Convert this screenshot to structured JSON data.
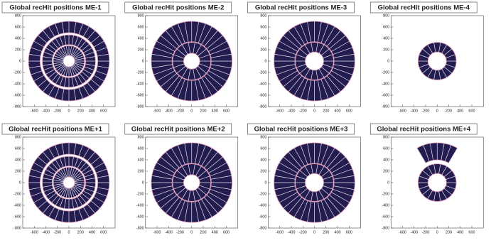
{
  "chart_data": [
    {
      "type": "rings",
      "title": "Global recHit positions ME-1",
      "xlim": [
        -800,
        800
      ],
      "ylim": [
        -800,
        800
      ],
      "xticks": [
        -600,
        -400,
        -200,
        0,
        200,
        400,
        600
      ],
      "yticks": [
        -800,
        -600,
        -400,
        -200,
        0,
        200,
        400,
        600,
        800
      ],
      "color": "#231d4f",
      "rings": [
        {
          "inner": 100,
          "outer": 270,
          "chambers": 36
        },
        {
          "inner": 290,
          "outer": 460,
          "chambers": 36
        },
        {
          "inner": 500,
          "outer": 700,
          "chambers": 36
        }
      ]
    },
    {
      "type": "rings",
      "title": "Global recHit positions ME-2",
      "xlim": [
        -800,
        800
      ],
      "ylim": [
        -800,
        800
      ],
      "xticks": [
        -600,
        -400,
        -200,
        0,
        200,
        400,
        600
      ],
      "yticks": [
        -800,
        -600,
        -400,
        -200,
        0,
        200,
        400,
        600,
        800
      ],
      "color": "#231d4f",
      "rings": [
        {
          "inner": 140,
          "outer": 330,
          "chambers": 18
        },
        {
          "inner": 340,
          "outer": 700,
          "chambers": 36
        }
      ]
    },
    {
      "type": "rings",
      "title": "Global recHit positions ME-3",
      "xlim": [
        -800,
        800
      ],
      "ylim": [
        -800,
        800
      ],
      "xticks": [
        -600,
        -400,
        -200,
        0,
        200,
        400,
        600
      ],
      "yticks": [
        -800,
        -600,
        -400,
        -200,
        0,
        200,
        400,
        600,
        800
      ],
      "color": "#231d4f",
      "rings": [
        {
          "inner": 160,
          "outer": 330,
          "chambers": 18
        },
        {
          "inner": 340,
          "outer": 700,
          "chambers": 36
        }
      ]
    },
    {
      "type": "rings",
      "title": "Global recHit positions ME-4",
      "xlim": [
        -800,
        800
      ],
      "ylim": [
        -800,
        800
      ],
      "xticks": [
        -600,
        -400,
        -200,
        0,
        200,
        400,
        600
      ],
      "yticks": [
        -800,
        -600,
        -400,
        -200,
        0,
        200,
        400,
        600,
        800
      ],
      "color": "#231d4f",
      "rings": [
        {
          "inner": 160,
          "outer": 330,
          "chambers": 18
        }
      ]
    },
    {
      "type": "rings",
      "title": "Global recHit positions ME+1",
      "xlim": [
        -800,
        800
      ],
      "ylim": [
        -800,
        800
      ],
      "xticks": [
        -600,
        -400,
        -200,
        0,
        200,
        400,
        600
      ],
      "yticks": [
        -800,
        -600,
        -400,
        -200,
        0,
        200,
        400,
        600,
        800
      ],
      "color": "#231d4f",
      "rings": [
        {
          "inner": 100,
          "outer": 270,
          "chambers": 36
        },
        {
          "inner": 290,
          "outer": 460,
          "chambers": 36
        },
        {
          "inner": 500,
          "outer": 700,
          "chambers": 36
        }
      ]
    },
    {
      "type": "rings",
      "title": "Global recHit positions ME+2",
      "xlim": [
        -800,
        800
      ],
      "ylim": [
        -800,
        800
      ],
      "xticks": [
        -600,
        -400,
        -200,
        0,
        200,
        400,
        600
      ],
      "yticks": [
        -800,
        -600,
        -400,
        -200,
        0,
        200,
        400,
        600,
        800
      ],
      "color": "#231d4f",
      "rings": [
        {
          "inner": 140,
          "outer": 330,
          "chambers": 18
        },
        {
          "inner": 340,
          "outer": 700,
          "chambers": 36
        }
      ]
    },
    {
      "type": "rings",
      "title": "Global recHit positions ME+3",
      "xlim": [
        -800,
        800
      ],
      "ylim": [
        -800,
        800
      ],
      "xticks": [
        -600,
        -400,
        -200,
        0,
        200,
        400,
        600
      ],
      "yticks": [
        -800,
        -600,
        -400,
        -200,
        0,
        200,
        400,
        600,
        800
      ],
      "color": "#231d4f",
      "rings": [
        {
          "inner": 160,
          "outer": 330,
          "chambers": 18
        },
        {
          "inner": 340,
          "outer": 700,
          "chambers": 36
        }
      ]
    },
    {
      "type": "rings",
      "title": "Global recHit positions ME+4",
      "xlim": [
        -800,
        800
      ],
      "ylim": [
        -800,
        800
      ],
      "xticks": [
        -600,
        -400,
        -200,
        0,
        200,
        400,
        600
      ],
      "yticks": [
        -800,
        -600,
        -400,
        -200,
        0,
        200,
        400,
        600,
        800
      ],
      "color": "#231d4f",
      "rings": [
        {
          "inner": 160,
          "outer": 330,
          "chambers": 18
        },
        {
          "inner": 400,
          "outer": 700,
          "chambers": 36,
          "from": 60,
          "to": 120
        }
      ]
    }
  ]
}
